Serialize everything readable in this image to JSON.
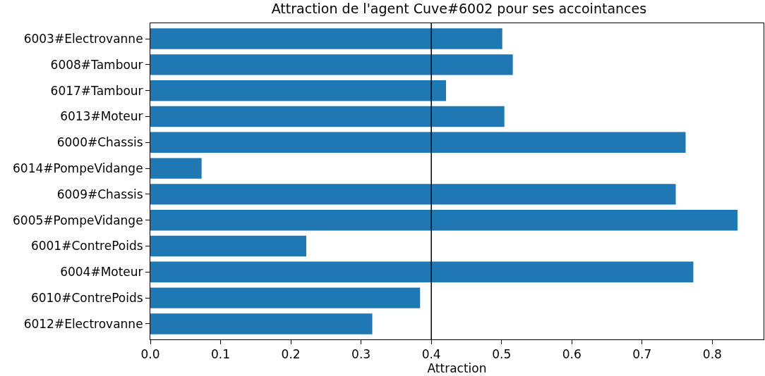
{
  "chart_data": {
    "type": "bar",
    "orientation": "horizontal",
    "title": "Attraction de l'agent Cuve#6002 pour ses accointances",
    "xlabel": "Attraction",
    "categories": [
      "6003#Electrovanne",
      "6008#Tambour",
      "6017#Tambour",
      "6013#Moteur",
      "6000#Chassis",
      "6014#PompeVidange",
      "6009#Chassis",
      "6005#PompeVidange",
      "6001#ContrePoids",
      "6004#Moteur",
      "6010#ContrePoids",
      "6012#Electrovanne"
    ],
    "values": [
      0.501,
      0.516,
      0.421,
      0.504,
      0.762,
      0.073,
      0.748,
      0.836,
      0.222,
      0.773,
      0.384,
      0.316
    ],
    "color": "#1f77b4",
    "xlim": [
      0,
      0.873
    ],
    "xticks": [
      {
        "value": 0,
        "label": "0.0"
      },
      0.1,
      0.2,
      0.3,
      0.4,
      0.5,
      0.6,
      0.7,
      0.8
    ],
    "ref_lines": [
      {
        "axis": "x",
        "value": 0.4,
        "color": "#000000"
      }
    ]
  }
}
